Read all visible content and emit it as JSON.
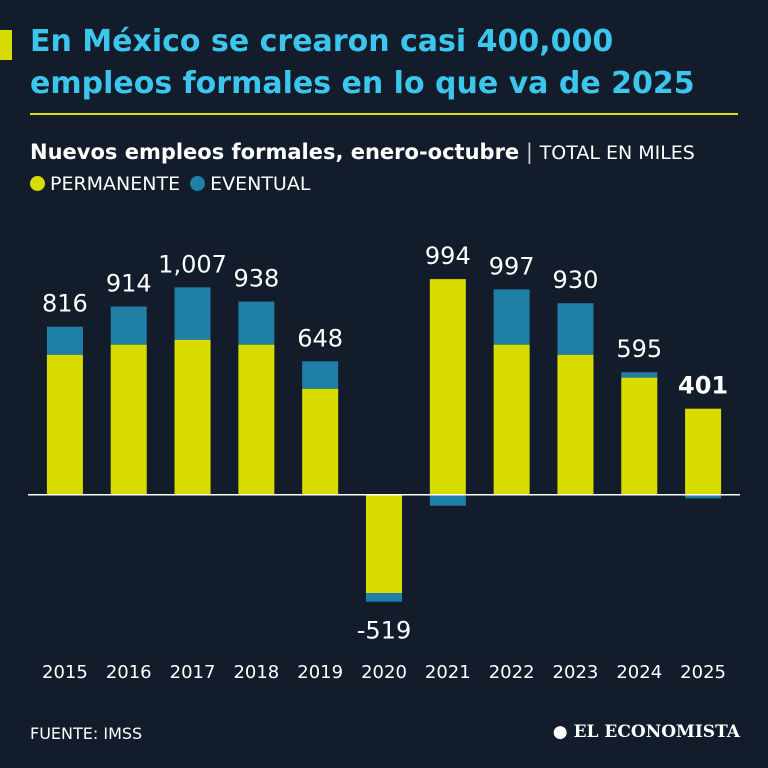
{
  "chart_data": {
    "type": "stacked_bar",
    "title": [
      "En México se crearon casi 400,000",
      "empleos formales en lo que va de 2025"
    ],
    "subtitle": "Nuevos empleos formales, enero-octubre",
    "unit_label": "TOTAL EN MILES",
    "categories": [
      "2015",
      "2016",
      "2017",
      "2018",
      "2019",
      "2020",
      "2021",
      "2022",
      "2023",
      "2024",
      "2025"
    ],
    "series": [
      {
        "name": "PERMANENTE",
        "color": "#d9dc00",
        "values": [
          680,
          729,
          753,
          729,
          515,
          -477,
          1047,
          729,
          680,
          569,
          418
        ]
      },
      {
        "name": "EVENTUAL",
        "color": "#1f7fa6",
        "values": [
          136,
          185,
          254,
          209,
          133,
          -42,
          -53,
          268,
          250,
          26,
          -17
        ]
      }
    ],
    "totals": [
      816,
      914,
      1007,
      938,
      648,
      -519,
      994,
      997,
      930,
      595,
      401
    ],
    "total_labels": [
      "816",
      "914",
      "1,007",
      "938",
      "648",
      "-519",
      "994",
      "997",
      "930",
      "595",
      "401"
    ],
    "ylim": [
      -700,
      1300
    ],
    "source": "FUENTE: IMSS",
    "brand": "EL ECONOMISTA"
  }
}
